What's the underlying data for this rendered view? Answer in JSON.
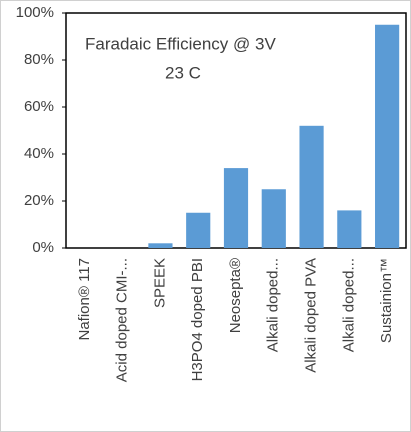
{
  "chart_data": {
    "type": "bar",
    "title": "Faradaic Efficiency @ 3V",
    "subtitle": "23 C",
    "categories": [
      "Nafion® 117",
      "Acid doped CMI-...",
      "SPEEK",
      "H3PO4 doped PBI",
      "Neosepta®",
      "Alkali doped...",
      "Alkali doped PVA",
      "Alkali doped...",
      "Sustainion™"
    ],
    "values": [
      0,
      0,
      2,
      15,
      34,
      25,
      52,
      16,
      95
    ],
    "color": "#5b9bd5",
    "ylim": [
      0,
      100
    ],
    "yticks": [
      {
        "value": 0,
        "label": "0%"
      },
      {
        "value": 20,
        "label": "20%"
      },
      {
        "value": 40,
        "label": "40%"
      },
      {
        "value": 60,
        "label": "60%"
      },
      {
        "value": 80,
        "label": "80%"
      },
      {
        "value": 100,
        "label": "100%"
      }
    ]
  }
}
